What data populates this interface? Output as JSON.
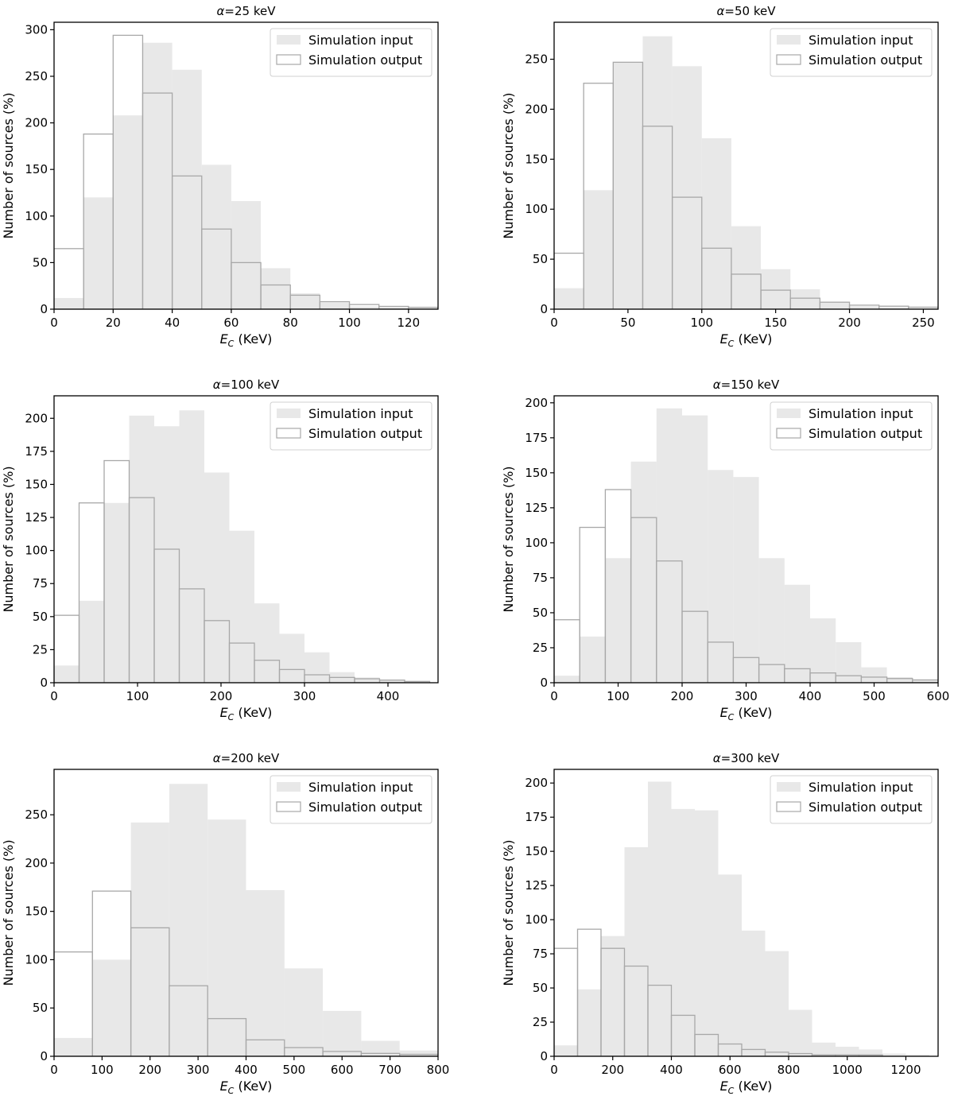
{
  "chart_data": [
    {
      "type": "bar",
      "title": "α=25 keV",
      "xlabel": "E_C (KeV)",
      "ylabel": "Number of sources (%)",
      "bin_edges": [
        0,
        10,
        20,
        30,
        40,
        50,
        60,
        70,
        80,
        90,
        100,
        110,
        120,
        130
      ],
      "series": [
        {
          "name": "Simulation input",
          "values": [
            12,
            120,
            208,
            286,
            257,
            155,
            116,
            44,
            17,
            7,
            3,
            2,
            1
          ]
        },
        {
          "name": "Simulation output",
          "values": [
            65,
            188,
            294,
            232,
            143,
            86,
            50,
            26,
            15,
            8,
            5,
            3,
            2
          ]
        }
      ],
      "xlim": [
        0,
        130
      ],
      "ylim": [
        0,
        308
      ],
      "xticks": [
        0,
        20,
        40,
        60,
        80,
        100,
        120
      ],
      "yticks": [
        0,
        50,
        100,
        150,
        200,
        250,
        300
      ],
      "legend": "top-right",
      "grid": false
    },
    {
      "type": "bar",
      "title": "α=50 keV",
      "xlabel": "E_C (KeV)",
      "ylabel": "Number of sources (%)",
      "bin_edges": [
        0,
        20,
        40,
        60,
        80,
        100,
        120,
        140,
        160,
        180,
        200,
        220,
        240,
        260
      ],
      "series": [
        {
          "name": "Simulation input",
          "values": [
            21,
            119,
            247,
            273,
            243,
            171,
            83,
            40,
            20,
            7,
            3,
            2,
            1
          ]
        },
        {
          "name": "Simulation output",
          "values": [
            56,
            226,
            247,
            183,
            112,
            61,
            35,
            19,
            11,
            7,
            4,
            3,
            2
          ]
        }
      ],
      "xlim": [
        0,
        260
      ],
      "ylim": [
        0,
        287
      ],
      "xticks": [
        0,
        50,
        100,
        150,
        200,
        250
      ],
      "yticks": [
        0,
        50,
        100,
        150,
        200,
        250
      ],
      "legend": "top-right",
      "grid": false
    },
    {
      "type": "bar",
      "title": "α=100 keV",
      "xlabel": "E_C (KeV)",
      "ylabel": "Number of sources (%)",
      "bin_edges": [
        0,
        30,
        60,
        90,
        120,
        150,
        180,
        210,
        240,
        270,
        300,
        330,
        360,
        390,
        420,
        450
      ],
      "series": [
        {
          "name": "Simulation input",
          "values": [
            13,
            62,
            136,
            202,
            194,
            206,
            159,
            115,
            60,
            37,
            23,
            8,
            4,
            2,
            1
          ]
        },
        {
          "name": "Simulation output",
          "values": [
            51,
            136,
            168,
            140,
            101,
            71,
            47,
            30,
            17,
            10,
            6,
            4,
            3,
            2,
            1
          ]
        }
      ],
      "xlim": [
        0,
        460
      ],
      "ylim": [
        0,
        217
      ],
      "xticks": [
        0,
        100,
        200,
        300,
        400
      ],
      "yticks": [
        0,
        25,
        50,
        75,
        100,
        125,
        150,
        175,
        200
      ],
      "legend": "top-right",
      "grid": false
    },
    {
      "type": "bar",
      "title": "α=150 keV",
      "xlabel": "E_C (KeV)",
      "ylabel": "Number of sources (%)",
      "bin_edges": [
        0,
        40,
        80,
        120,
        160,
        200,
        240,
        280,
        320,
        360,
        400,
        440,
        480,
        520,
        560,
        600
      ],
      "series": [
        {
          "name": "Simulation input",
          "values": [
            5,
            33,
            89,
            158,
            196,
            191,
            152,
            147,
            89,
            70,
            46,
            29,
            11,
            4,
            2
          ]
        },
        {
          "name": "Simulation output",
          "values": [
            45,
            111,
            138,
            118,
            87,
            51,
            29,
            18,
            13,
            10,
            7,
            5,
            4,
            3,
            2
          ]
        }
      ],
      "xlim": [
        0,
        600
      ],
      "ylim": [
        0,
        205
      ],
      "xticks": [
        0,
        100,
        200,
        300,
        400,
        500,
        600
      ],
      "yticks": [
        0,
        25,
        50,
        75,
        100,
        125,
        150,
        175,
        200
      ],
      "legend": "top-right",
      "grid": false
    },
    {
      "type": "bar",
      "title": "α=200 keV",
      "xlabel": "E_C (KeV)",
      "ylabel": "Number of sources (%)",
      "bin_edges": [
        0,
        80,
        160,
        240,
        320,
        400,
        480,
        560,
        640,
        720,
        800
      ],
      "series": [
        {
          "name": "Simulation input",
          "values": [
            19,
            100,
            242,
            282,
            245,
            172,
            91,
            47,
            16,
            6
          ]
        },
        {
          "name": "Simulation output",
          "values": [
            108,
            171,
            133,
            73,
            39,
            17,
            9,
            5,
            3,
            2
          ]
        }
      ],
      "xlim": [
        0,
        800
      ],
      "ylim": [
        0,
        297
      ],
      "xticks": [
        0,
        100,
        200,
        300,
        400,
        500,
        600,
        700,
        800
      ],
      "yticks": [
        0,
        50,
        100,
        150,
        200,
        250
      ],
      "legend": "top-right",
      "grid": false
    },
    {
      "type": "bar",
      "title": "α=300 keV",
      "xlabel": "E_C (KeV)",
      "ylabel": "Number of sources (%)",
      "bin_edges": [
        0,
        80,
        160,
        240,
        320,
        400,
        480,
        560,
        640,
        720,
        800,
        880,
        960,
        1040,
        1120,
        1200,
        1280
      ],
      "series": [
        {
          "name": "Simulation input",
          "values": [
            8,
            49,
            88,
            153,
            201,
            181,
            180,
            133,
            92,
            77,
            34,
            10,
            7,
            5,
            2,
            1
          ]
        },
        {
          "name": "Simulation output",
          "values": [
            79,
            93,
            79,
            66,
            52,
            30,
            16,
            9,
            5,
            3,
            2,
            1,
            1,
            1,
            0,
            0
          ]
        }
      ],
      "xlim": [
        0,
        1310
      ],
      "ylim": [
        0,
        210
      ],
      "xticks": [
        0,
        200,
        400,
        600,
        800,
        1000,
        1200
      ],
      "yticks": [
        0,
        25,
        50,
        75,
        100,
        125,
        150,
        175,
        200
      ],
      "legend": "top-right",
      "grid": false
    }
  ],
  "colors": {
    "input_fill": "#e8e8e8",
    "output_edge": "#a8a8a8",
    "axes": "#000000"
  }
}
